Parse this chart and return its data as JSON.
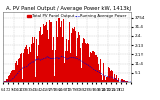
{
  "title": "A. PV Panel Output / Average Power kW, 1413kJ",
  "legend_labels": [
    "Total PV Panel Output",
    "Running Average Power"
  ],
  "legend_colors": [
    "#dd0000",
    "#0000cc"
  ],
  "bg_color": "#ffffff",
  "grid_color": "#aaaaaa",
  "bar_color": "#dd0000",
  "line_color": "#0000cc",
  "n_days": 365,
  "peak_day": 155,
  "peak_value": 3500,
  "ylim": [
    0,
    3800
  ],
  "ytick_values": [
    500,
    1000,
    1500,
    2000,
    2500,
    3000,
    3500
  ],
  "ytick_labels": [
    "5.1",
    "11:4",
    "2.1!!",
    "2:13",
    "2.4.",
    "31.4",
    "3754"
  ],
  "title_fontsize": 3.8,
  "axis_fontsize": 3.0,
  "legend_fontsize": 2.8
}
